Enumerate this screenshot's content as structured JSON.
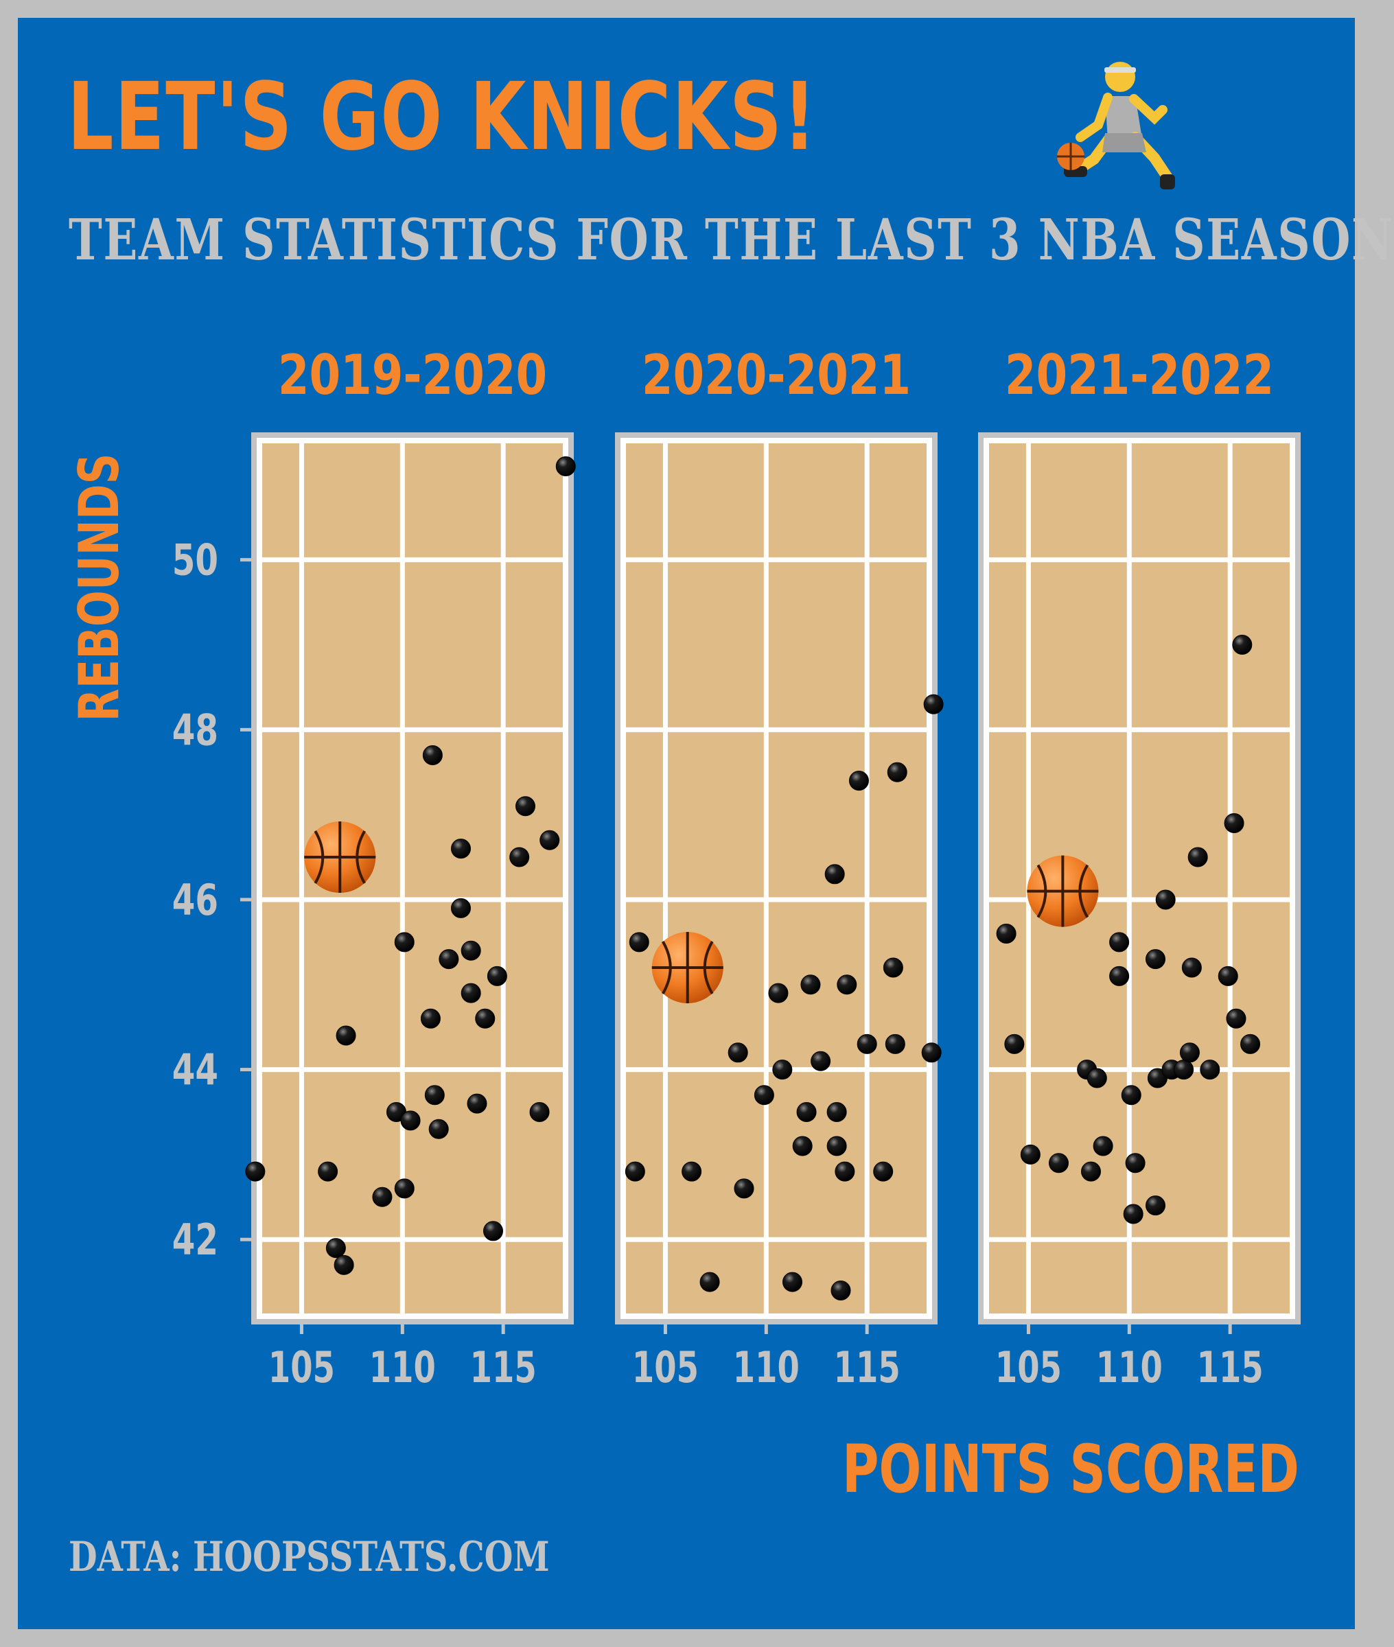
{
  "title": "LET'S GO KNICKS!",
  "subtitle": "TEAM STATISTICS FOR THE LAST 3 NBA SEASON",
  "source": "DATA: HOOPSSTATS.COM",
  "colors": {
    "background": "#0267b7",
    "accent": "#f5862b",
    "muted": "#c3c3c3",
    "court": "#dfbc87",
    "point": "#111111"
  },
  "icons": {
    "player": "person-dribbling-basketball-icon",
    "marker": "basketball-icon"
  },
  "chart_data": {
    "type": "scatter",
    "xlabel": "POINTS SCORED",
    "ylabel": "REBOUNDS",
    "xlim": [
      102.5,
      118.5
    ],
    "ylim": [
      41.0,
      51.5
    ],
    "x_ticks": [
      105,
      110,
      115
    ],
    "y_ticks": [
      42,
      44,
      46,
      48,
      50
    ],
    "grid": true,
    "panels": [
      {
        "title": "2019-2020",
        "basketball": {
          "x": 106.9,
          "y": 46.5
        },
        "points": [
          [
            102.7,
            42.8
          ],
          [
            106.3,
            42.8
          ],
          [
            106.7,
            41.9
          ],
          [
            107.1,
            41.7
          ],
          [
            107.2,
            44.4
          ],
          [
            109.0,
            42.5
          ],
          [
            109.7,
            43.5
          ],
          [
            110.1,
            45.5
          ],
          [
            110.1,
            42.6
          ],
          [
            110.4,
            43.4
          ],
          [
            111.4,
            44.6
          ],
          [
            111.5,
            47.7
          ],
          [
            111.6,
            43.7
          ],
          [
            111.8,
            43.3
          ],
          [
            112.3,
            45.3
          ],
          [
            112.9,
            46.6
          ],
          [
            112.9,
            45.9
          ],
          [
            113.4,
            45.4
          ],
          [
            113.4,
            44.9
          ],
          [
            113.7,
            43.6
          ],
          [
            114.1,
            44.6
          ],
          [
            114.5,
            42.1
          ],
          [
            114.7,
            45.1
          ],
          [
            115.8,
            46.5
          ],
          [
            116.1,
            47.1
          ],
          [
            116.8,
            43.5
          ],
          [
            117.3,
            46.7
          ],
          [
            118.1,
            51.1
          ]
        ]
      },
      {
        "title": "2020-2021",
        "basketball": {
          "x": 106.1,
          "y": 45.2
        },
        "points": [
          [
            103.5,
            42.8
          ],
          [
            103.7,
            45.5
          ],
          [
            106.3,
            42.8
          ],
          [
            107.2,
            41.5
          ],
          [
            108.6,
            44.2
          ],
          [
            108.9,
            42.6
          ],
          [
            109.9,
            43.7
          ],
          [
            110.6,
            44.9
          ],
          [
            110.8,
            44.0
          ],
          [
            111.3,
            41.5
          ],
          [
            111.8,
            43.1
          ],
          [
            112.0,
            43.5
          ],
          [
            112.2,
            45.0
          ],
          [
            112.7,
            44.1
          ],
          [
            113.4,
            46.3
          ],
          [
            113.5,
            43.5
          ],
          [
            113.5,
            43.1
          ],
          [
            113.7,
            41.4
          ],
          [
            113.9,
            42.8
          ],
          [
            114.0,
            45.0
          ],
          [
            114.6,
            47.4
          ],
          [
            115.0,
            44.3
          ],
          [
            115.8,
            42.8
          ],
          [
            116.3,
            45.2
          ],
          [
            116.4,
            44.3
          ],
          [
            116.5,
            47.5
          ],
          [
            118.2,
            44.2
          ],
          [
            118.3,
            48.3
          ]
        ]
      },
      {
        "title": "2021-2022",
        "basketball": {
          "x": 106.7,
          "y": 46.1
        },
        "points": [
          [
            103.9,
            45.6
          ],
          [
            104.3,
            44.3
          ],
          [
            105.1,
            43.0
          ],
          [
            106.5,
            42.9
          ],
          [
            107.9,
            44.0
          ],
          [
            108.1,
            42.8
          ],
          [
            108.4,
            43.9
          ],
          [
            108.7,
            43.1
          ],
          [
            109.5,
            45.5
          ],
          [
            109.5,
            45.1
          ],
          [
            110.1,
            43.7
          ],
          [
            110.2,
            42.3
          ],
          [
            110.3,
            42.9
          ],
          [
            111.3,
            42.4
          ],
          [
            111.3,
            45.3
          ],
          [
            111.4,
            43.9
          ],
          [
            111.8,
            46.0
          ],
          [
            112.1,
            44.0
          ],
          [
            112.7,
            44.0
          ],
          [
            113.0,
            44.2
          ],
          [
            113.1,
            45.2
          ],
          [
            113.4,
            46.5
          ],
          [
            114.0,
            44.0
          ],
          [
            114.9,
            45.1
          ],
          [
            115.2,
            46.9
          ],
          [
            115.3,
            44.6
          ],
          [
            115.6,
            49.0
          ],
          [
            116.0,
            44.3
          ]
        ]
      }
    ]
  }
}
